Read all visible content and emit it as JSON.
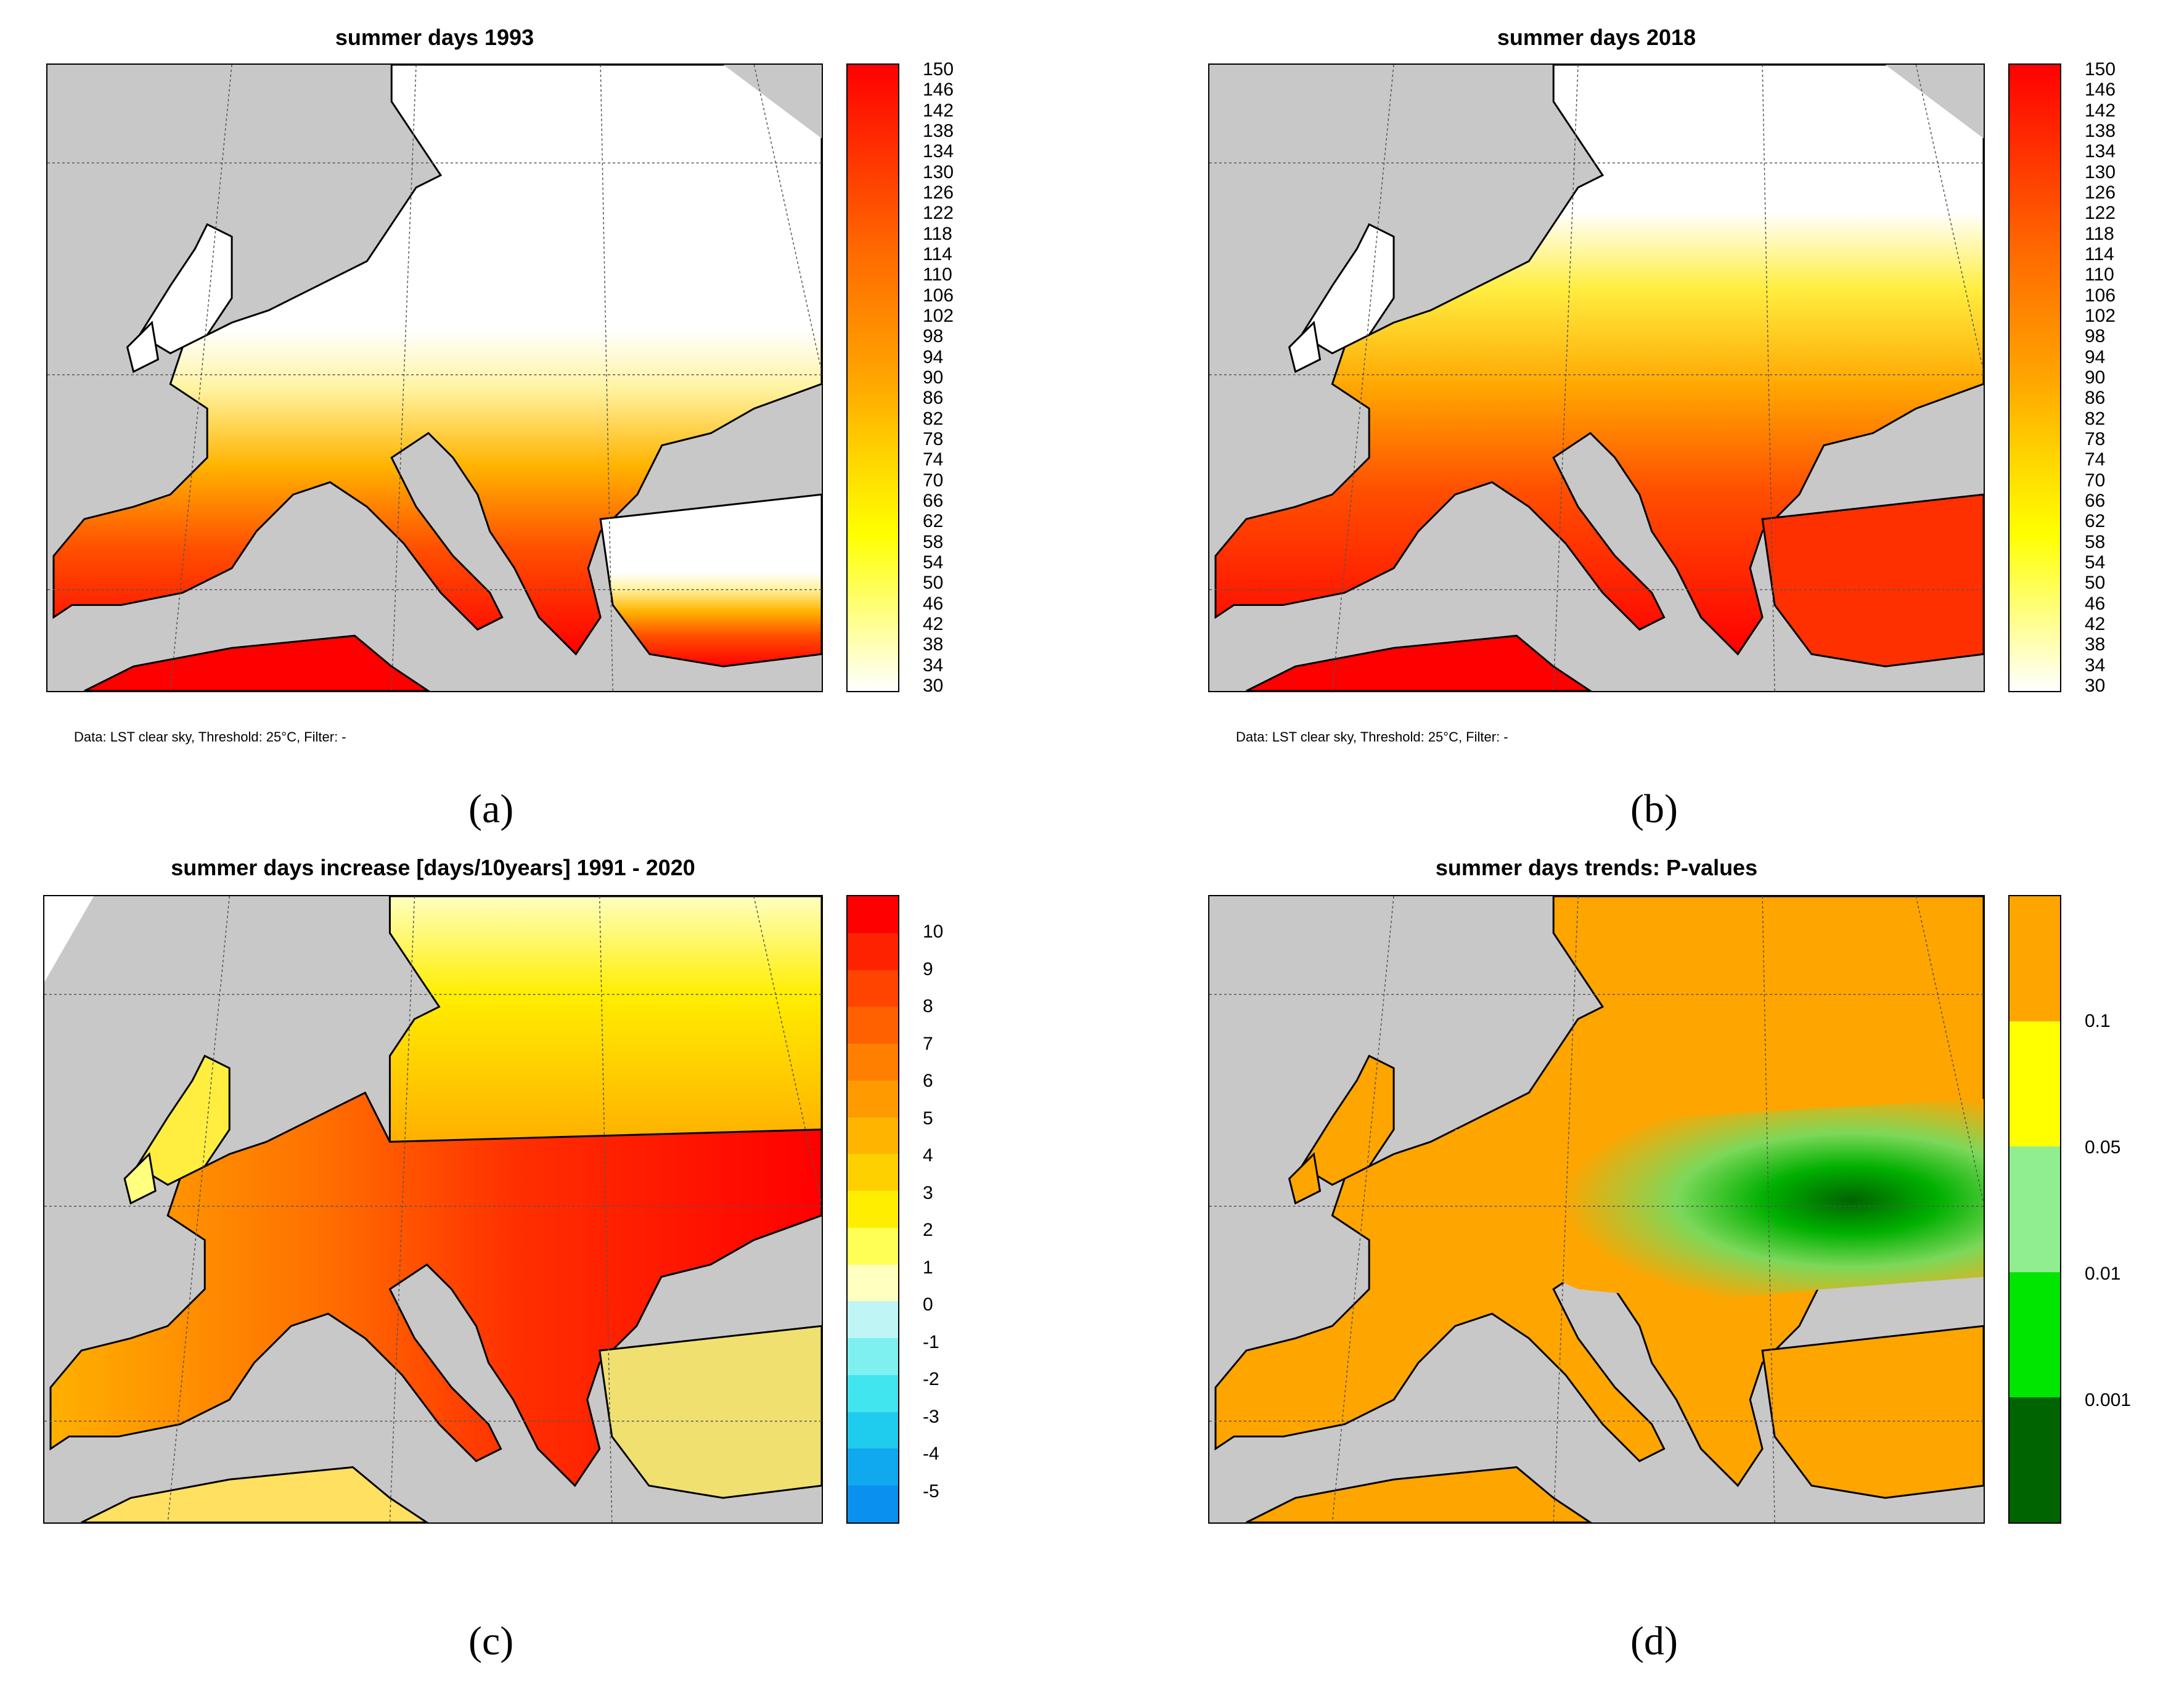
{
  "panels": {
    "a": {
      "title": "summer days 1993",
      "note": "Data: LST clear sky, Threshold: 25°C, Filter: -",
      "caption": "(a)",
      "colorbar_ticks": [
        "150",
        "146",
        "142",
        "138",
        "134",
        "130",
        "126",
        "122",
        "118",
        "114",
        "110",
        "106",
        "102",
        "98",
        "94",
        "90",
        "86",
        "82",
        "78",
        "74",
        "70",
        "66",
        "62",
        "58",
        "54",
        "50",
        "46",
        "42",
        "38",
        "34",
        "30"
      ],
      "colorbar_colors": [
        "#ff0000",
        "#ff6a00",
        "#ffa500",
        "#ffd200",
        "#ffff00",
        "#ffffff"
      ]
    },
    "b": {
      "title": "summer days 2018",
      "note": "Data: LST clear sky, Threshold: 25°C, Filter: -",
      "caption": "(b)",
      "colorbar_ticks": [
        "150",
        "146",
        "142",
        "138",
        "134",
        "130",
        "126",
        "122",
        "118",
        "114",
        "110",
        "106",
        "102",
        "98",
        "94",
        "90",
        "86",
        "82",
        "78",
        "74",
        "70",
        "66",
        "62",
        "58",
        "54",
        "50",
        "46",
        "42",
        "38",
        "34",
        "30"
      ],
      "colorbar_colors": [
        "#ff0000",
        "#ff6a00",
        "#ffa500",
        "#ffd200",
        "#ffff00",
        "#ffffff"
      ]
    },
    "c": {
      "title": "summer days increase [days/10years] 1991 - 2020",
      "caption": "(c)",
      "colorbar_ticks": [
        "10",
        "9",
        "8",
        "7",
        "6",
        "5",
        "4",
        "3",
        "2",
        "1",
        "0",
        "-1",
        "-2",
        "-3",
        "-4",
        "-5"
      ],
      "colorbar_colors": [
        "#ff0000",
        "#ff2200",
        "#ff4400",
        "#ff6000",
        "#ff7f00",
        "#ff9a00",
        "#ffb400",
        "#ffd000",
        "#ffee00",
        "#ffff55",
        "#ffffc0",
        "#bff5f5",
        "#7ff0f0",
        "#40e5f0",
        "#20ccee",
        "#10a8ee",
        "#0a90ee"
      ]
    },
    "d": {
      "title": "summer days trends: P-values",
      "caption": "(d)",
      "colorbar_ticks": [
        "0.1",
        "0.05",
        "0.01",
        "0.001"
      ],
      "colorbar_colors": [
        "#ffa500",
        "#ffff00",
        "#90ee90",
        "#00e600",
        "#006400"
      ]
    }
  }
}
